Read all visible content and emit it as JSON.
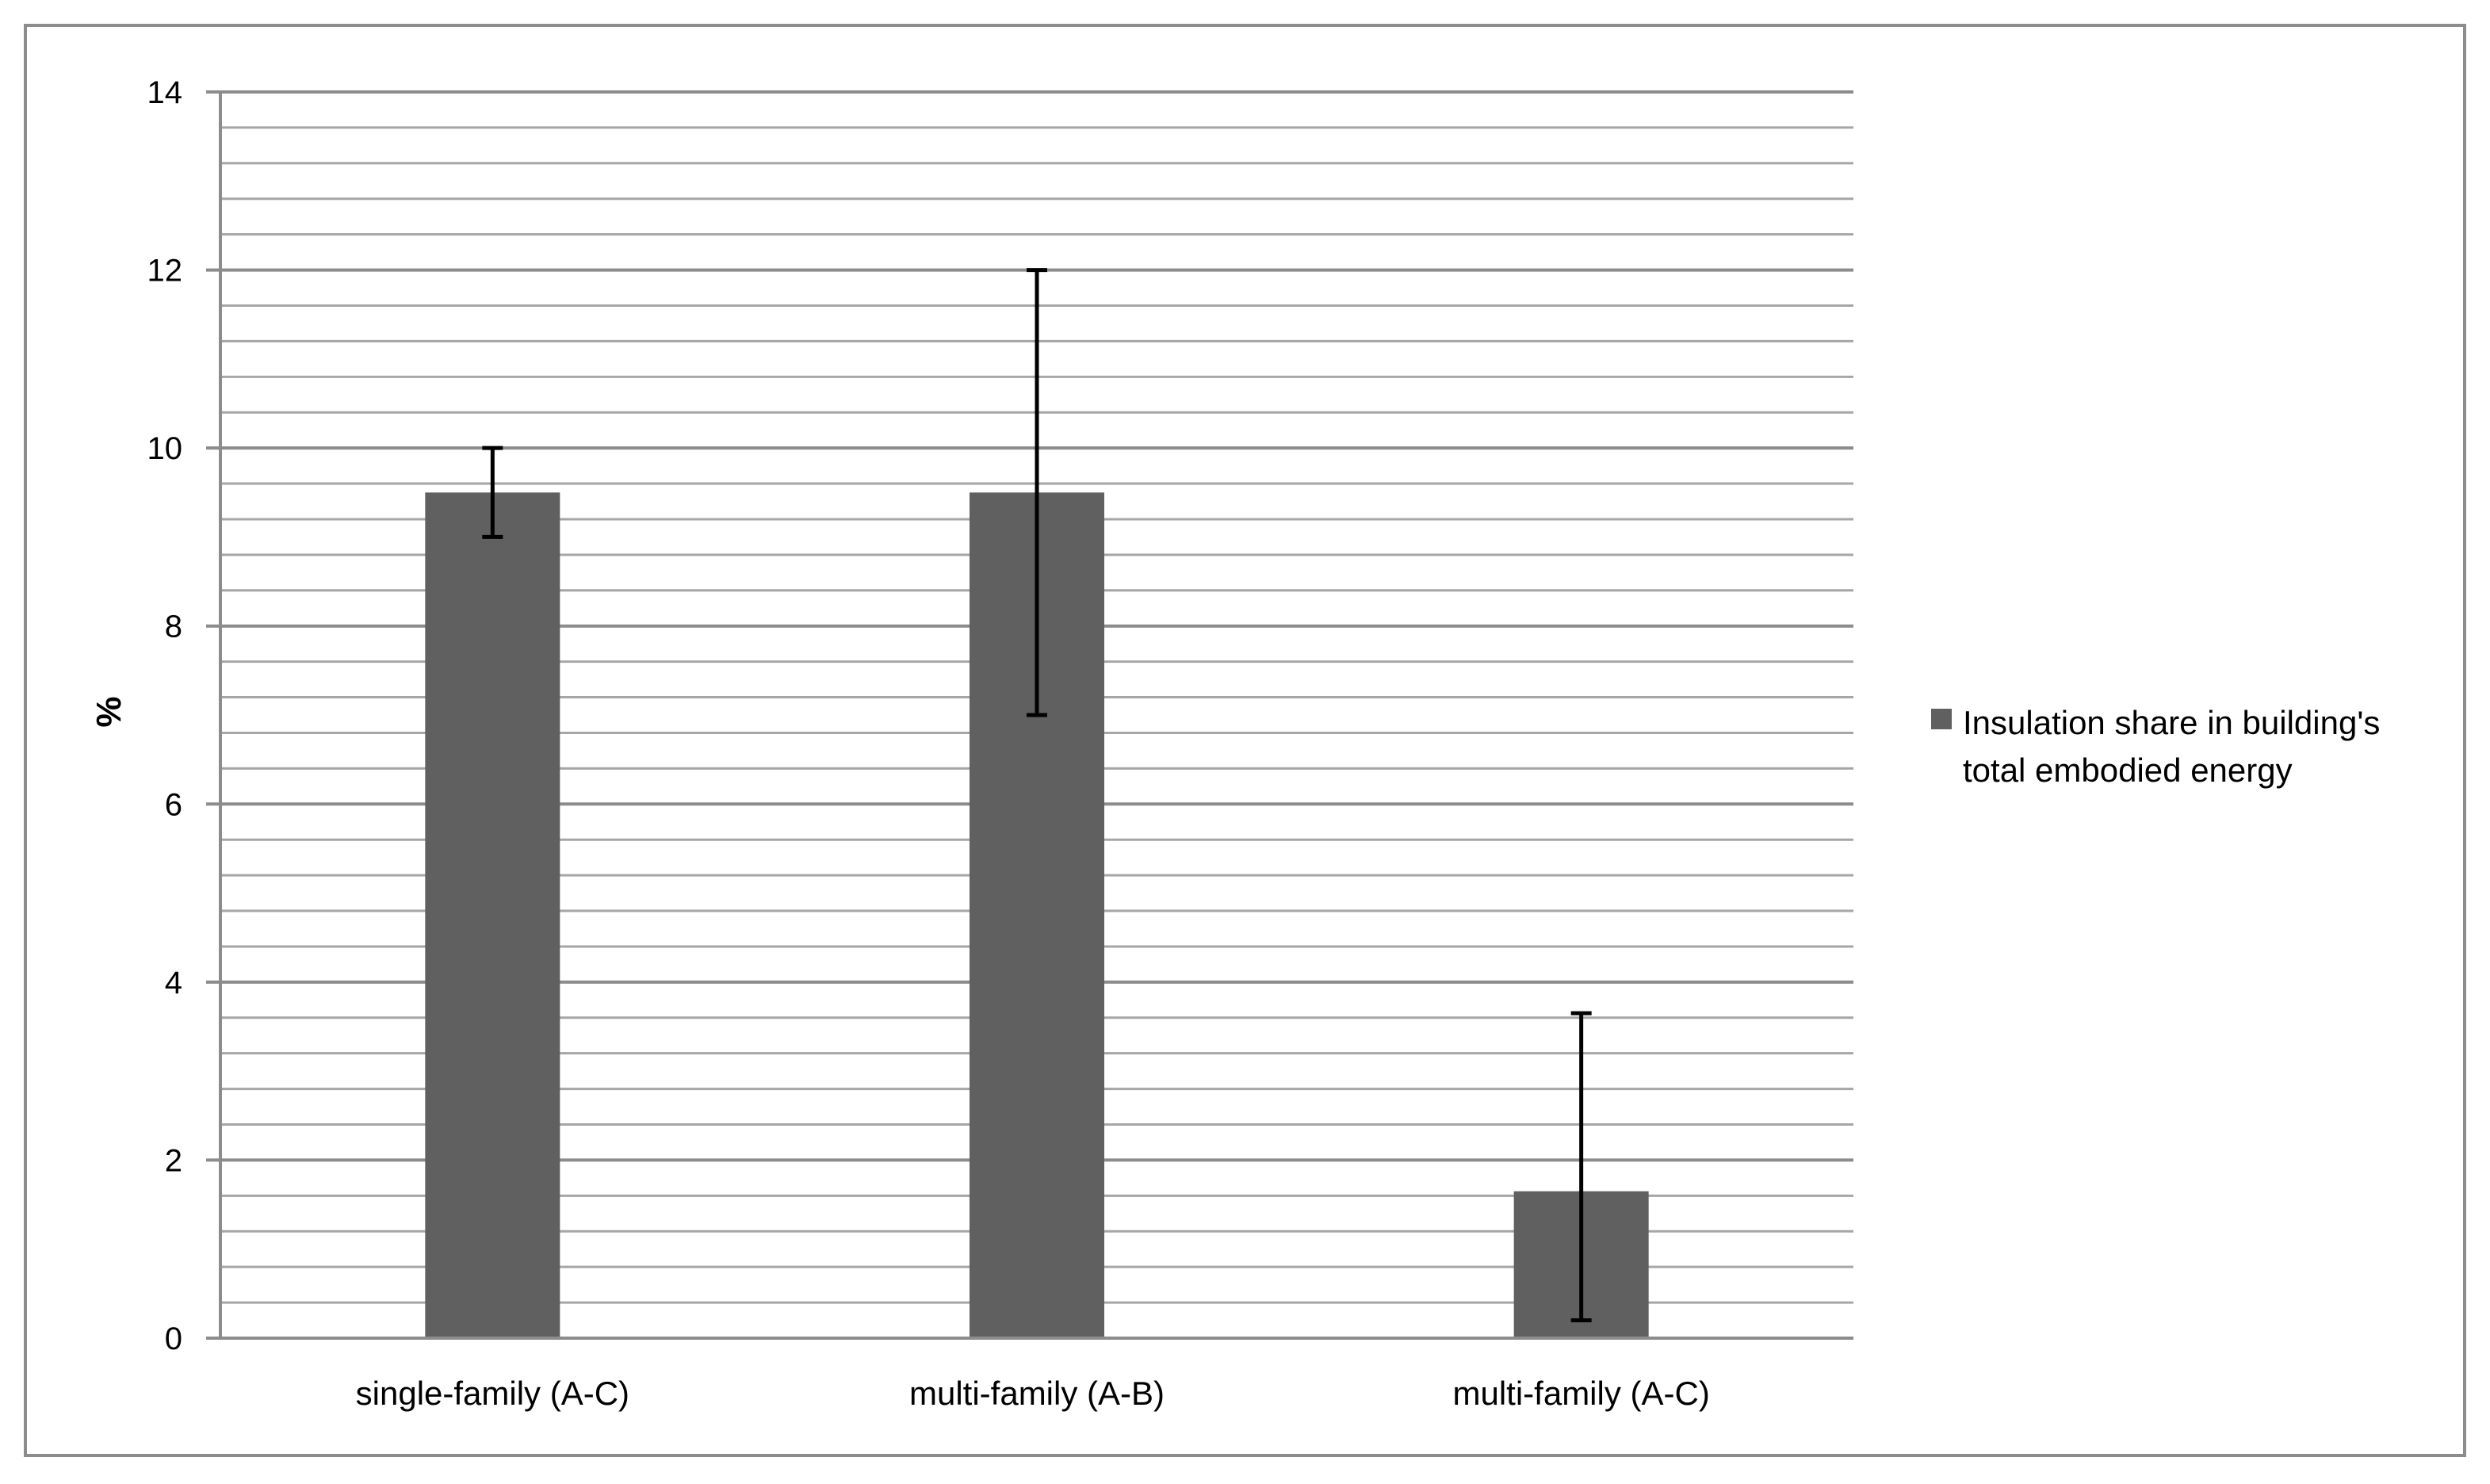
{
  "chart_data": {
    "type": "bar",
    "title": "",
    "xlabel": "",
    "ylabel": "%",
    "ylim": [
      0,
      14
    ],
    "yticks": [
      0,
      2,
      4,
      6,
      8,
      10,
      12,
      14
    ],
    "minor_grid_step": 0.4,
    "grid": true,
    "legend_position": "right",
    "categories": [
      "single-family (A-C)",
      "multi-family (A-B)",
      "multi-family (A-C)"
    ],
    "series": [
      {
        "name": "Insulation share in building's total embodied energy",
        "color": "#606060",
        "values": [
          9.5,
          9.5,
          1.65
        ],
        "error_low": [
          9.0,
          7.0,
          0.2
        ],
        "error_high": [
          10.0,
          12.0,
          3.65
        ]
      }
    ],
    "legend_lines": [
      "Insulation share in building's",
      "total embodied energy"
    ],
    "colors": {
      "bar": "#606060",
      "gridline": "#a6a6a6",
      "major_gridline": "#8c8c8c",
      "axis": "#8c8c8c",
      "error_bar": "#000000",
      "frame": "#8c8c8c"
    }
  }
}
